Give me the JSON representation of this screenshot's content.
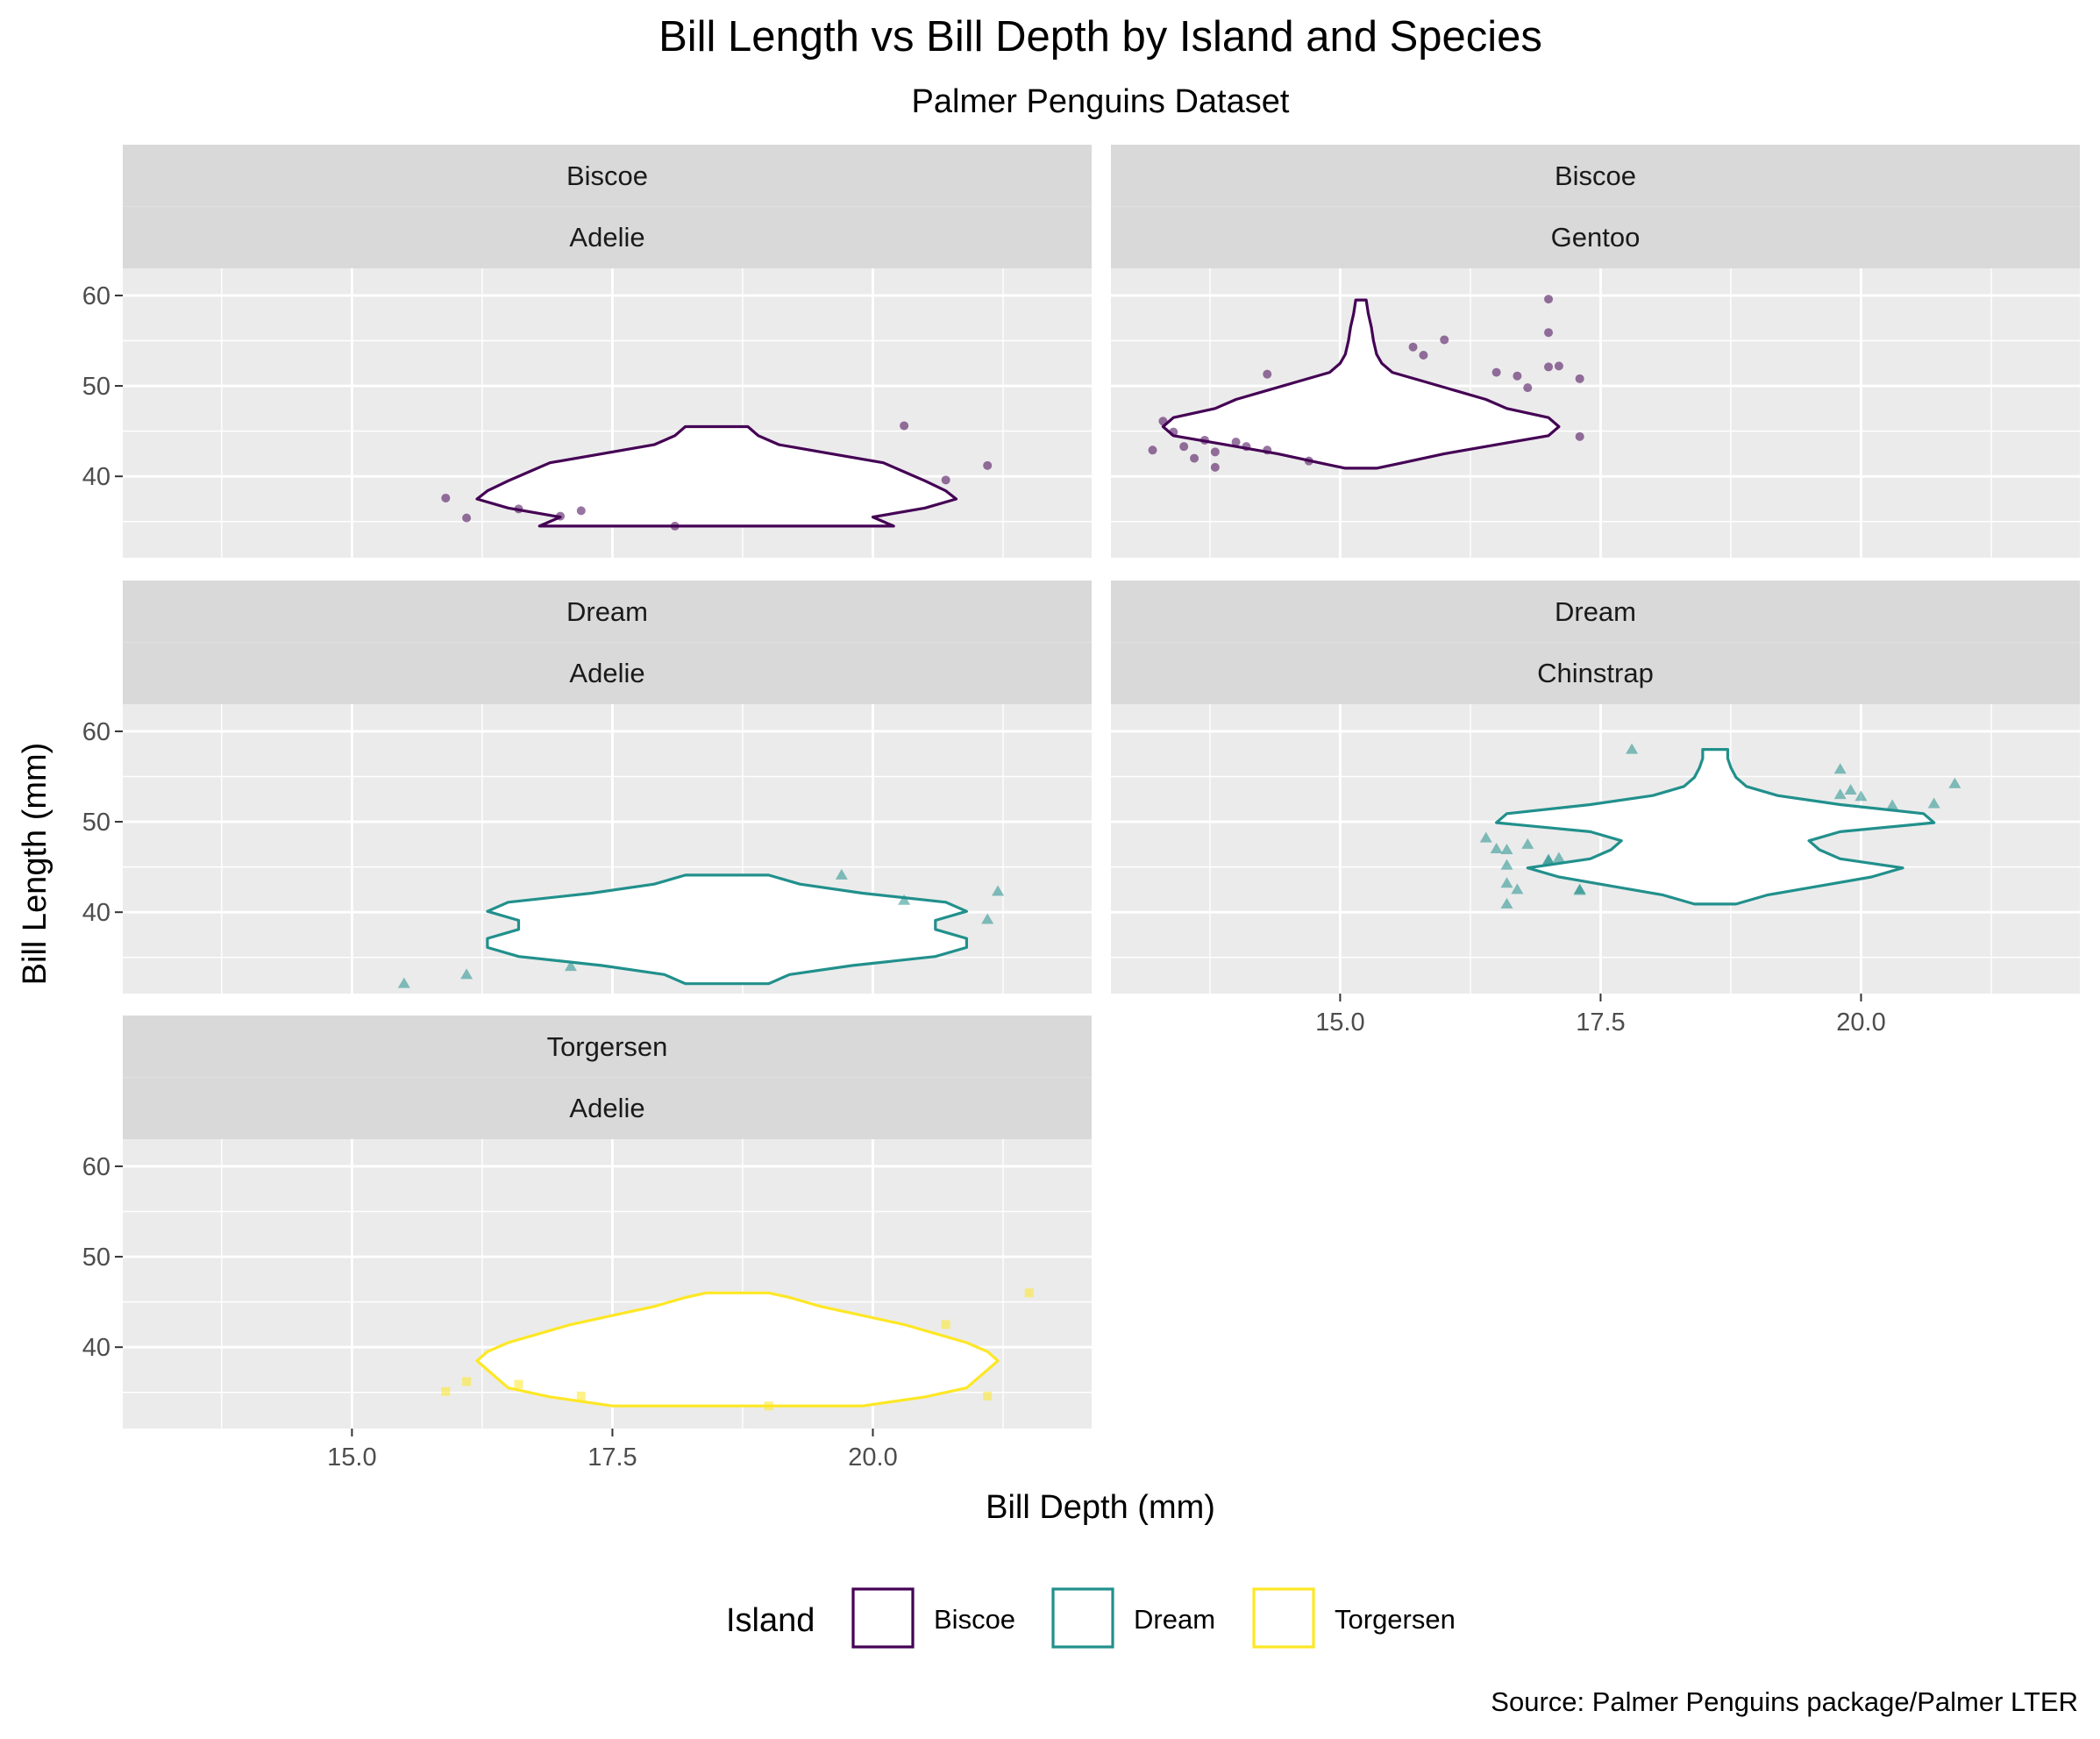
{
  "chart_data": {
    "type": "violin",
    "title": "Bill Length vs Bill Depth by Island and Species",
    "subtitle": "Palmer Penguins Dataset",
    "xlabel": "Bill Depth (mm)",
    "ylabel": "Bill Length (mm)",
    "caption": "Source: Palmer Penguins package/Palmer LTER",
    "xlim": [
      12.8,
      22.1
    ],
    "ylim": [
      31,
      63
    ],
    "x_ticks": [
      "15.0",
      "17.5",
      "20.0"
    ],
    "y_ticks": [
      "40",
      "50",
      "60"
    ],
    "grid": true,
    "legend": {
      "title": "Island",
      "position": "bottom",
      "items": [
        {
          "label": "Biscoe",
          "color": "#440154"
        },
        {
          "label": "Dream",
          "color": "#21908C"
        },
        {
          "label": "Torgersen",
          "color": "#FDE725"
        }
      ]
    },
    "panels": [
      {
        "island": "Biscoe",
        "species": "Adelie",
        "color": "#440154",
        "marker": "circle",
        "violin": {
          "center": 18.5,
          "profile": [
            [
              34.5,
              1.7
            ],
            [
              35.5,
              1.5
            ],
            [
              36.5,
              2.0
            ],
            [
              37.5,
              2.3
            ],
            [
              38.4,
              2.2
            ],
            [
              39.5,
              2.0
            ],
            [
              40.5,
              1.8
            ],
            [
              41.5,
              1.6
            ],
            [
              42.5,
              1.1
            ],
            [
              43.5,
              0.6
            ],
            [
              44.5,
              0.4
            ],
            [
              45.5,
              0.3
            ]
          ]
        },
        "points": [
          [
            15.9,
            37.6
          ],
          [
            16.1,
            35.4
          ],
          [
            16.6,
            36.4
          ],
          [
            17.0,
            35.6
          ],
          [
            17.2,
            36.2
          ],
          [
            18.1,
            34.5
          ],
          [
            20.3,
            45.6
          ],
          [
            20.7,
            39.6
          ],
          [
            21.1,
            41.2
          ]
        ]
      },
      {
        "island": "Biscoe",
        "species": "Gentoo",
        "color": "#440154",
        "marker": "circle",
        "violin": {
          "center": 15.2,
          "profile": [
            [
              40.9,
              0.15
            ],
            [
              41.5,
              0.4
            ],
            [
              42.5,
              0.8
            ],
            [
              43.5,
              1.3
            ],
            [
              44.5,
              1.8
            ],
            [
              45.5,
              1.9
            ],
            [
              46.5,
              1.8
            ],
            [
              47.5,
              1.4
            ],
            [
              48.5,
              1.2
            ],
            [
              49.5,
              0.9
            ],
            [
              50.5,
              0.6
            ],
            [
              51.5,
              0.3
            ],
            [
              52.5,
              0.2
            ],
            [
              53.5,
              0.15
            ],
            [
              55,
              0.12
            ],
            [
              56.5,
              0.1
            ],
            [
              58,
              0.07
            ],
            [
              59.5,
              0.05
            ]
          ]
        },
        "points": [
          [
            13.2,
            42.9
          ],
          [
            13.3,
            46.1
          ],
          [
            13.4,
            44.9
          ],
          [
            13.5,
            43.3
          ],
          [
            13.6,
            42.0
          ],
          [
            13.7,
            44.0
          ],
          [
            13.8,
            42.7
          ],
          [
            13.8,
            41.0
          ],
          [
            14.0,
            43.8
          ],
          [
            14.1,
            43.3
          ],
          [
            14.3,
            42.9
          ],
          [
            14.3,
            51.3
          ],
          [
            14.7,
            41.7
          ],
          [
            15.7,
            54.3
          ],
          [
            15.8,
            53.4
          ],
          [
            16.0,
            55.1
          ],
          [
            16.5,
            51.5
          ],
          [
            16.7,
            51.1
          ],
          [
            16.8,
            49.8
          ],
          [
            17.0,
            52.1
          ],
          [
            17.0,
            55.9
          ],
          [
            17.0,
            59.6
          ],
          [
            17.1,
            52.2
          ],
          [
            17.3,
            50.8
          ],
          [
            17.3,
            44.4
          ]
        ]
      },
      {
        "island": "Dream",
        "species": "Adelie",
        "color": "#21908C",
        "marker": "triangle",
        "violin": {
          "center": 18.6,
          "profile": [
            [
              32.1,
              0.4
            ],
            [
              33.1,
              0.6
            ],
            [
              34.1,
              1.2
            ],
            [
              35.1,
              2.0
            ],
            [
              36.1,
              2.3
            ],
            [
              37.1,
              2.3
            ],
            [
              38.1,
              2.0
            ],
            [
              39.1,
              2.0
            ],
            [
              40.1,
              2.3
            ],
            [
              41.1,
              2.1
            ],
            [
              42.1,
              1.3
            ],
            [
              43.1,
              0.7
            ],
            [
              44.1,
              0.4
            ]
          ]
        },
        "points": [
          [
            15.5,
            32.1
          ],
          [
            16.1,
            33.1
          ],
          [
            17.1,
            34.0
          ],
          [
            19.7,
            44.1
          ],
          [
            20.3,
            41.3
          ],
          [
            21.1,
            39.2
          ],
          [
            21.2,
            42.3
          ]
        ]
      },
      {
        "island": "Dream",
        "species": "Chinstrap",
        "color": "#21908C",
        "marker": "triangle",
        "violin": {
          "center": 18.6,
          "profile": [
            [
              40.9,
              0.2
            ],
            [
              41.9,
              0.5
            ],
            [
              42.9,
              1.0
            ],
            [
              43.9,
              1.5
            ],
            [
              44.9,
              1.8
            ],
            [
              45.9,
              1.2
            ],
            [
              46.9,
              1.0
            ],
            [
              47.9,
              0.9
            ],
            [
              48.9,
              1.2
            ],
            [
              49.9,
              2.1
            ],
            [
              50.9,
              2.0
            ],
            [
              51.9,
              1.2
            ],
            [
              52.9,
              0.6
            ],
            [
              53.9,
              0.3
            ],
            [
              54.9,
              0.2
            ],
            [
              56,
              0.15
            ],
            [
              57,
              0.12
            ],
            [
              58,
              0.12
            ]
          ]
        },
        "points": [
          [
            16.4,
            48.2
          ],
          [
            16.5,
            47.0
          ],
          [
            16.6,
            46.9
          ],
          [
            16.6,
            45.2
          ],
          [
            16.6,
            43.2
          ],
          [
            16.6,
            40.9
          ],
          [
            16.7,
            42.5
          ],
          [
            16.8,
            47.5
          ],
          [
            17.0,
            45.8
          ],
          [
            17.0,
            45.7
          ],
          [
            17.1,
            46.0
          ],
          [
            17.3,
            42.4
          ],
          [
            17.3,
            42.5
          ],
          [
            17.8,
            58.0
          ],
          [
            19.8,
            55.8
          ],
          [
            19.8,
            53.0
          ],
          [
            19.9,
            53.5
          ],
          [
            20.0,
            52.8
          ],
          [
            20.3,
            51.8
          ],
          [
            20.7,
            52.0
          ],
          [
            20.9,
            54.2
          ]
        ]
      },
      {
        "island": "Torgersen",
        "species": "Adelie",
        "color": "#FDE725",
        "marker": "square",
        "violin": {
          "center": 18.7,
          "profile": [
            [
              33.5,
              1.2
            ],
            [
              34.5,
              1.8
            ],
            [
              35.5,
              2.2
            ],
            [
              36.5,
              2.3
            ],
            [
              37.5,
              2.4
            ],
            [
              38.5,
              2.5
            ],
            [
              39.5,
              2.4
            ],
            [
              40.5,
              2.2
            ],
            [
              41.5,
              1.9
            ],
            [
              42.5,
              1.6
            ],
            [
              43.5,
              1.2
            ],
            [
              44.5,
              0.8
            ],
            [
              45.5,
              0.5
            ],
            [
              46,
              0.3
            ]
          ]
        },
        "points": [
          [
            15.9,
            35.1
          ],
          [
            16.1,
            36.2
          ],
          [
            16.6,
            35.9
          ],
          [
            17.2,
            34.6
          ],
          [
            19.0,
            33.5
          ],
          [
            20.7,
            42.5
          ],
          [
            21.1,
            34.6
          ],
          [
            21.5,
            46.0
          ]
        ]
      }
    ]
  }
}
